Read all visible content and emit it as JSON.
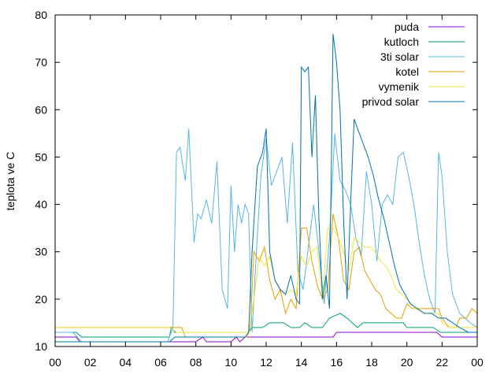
{
  "chart_data": {
    "type": "line",
    "ylabel": "teplota ve C",
    "xlabel": "",
    "title": "",
    "xlim": [
      0,
      24
    ],
    "ylim": [
      10,
      80
    ],
    "x_ticks": [
      "00",
      "02",
      "04",
      "06",
      "08",
      "10",
      "12",
      "14",
      "16",
      "18",
      "20",
      "22",
      "00"
    ],
    "y_ticks": [
      "10",
      "20",
      "30",
      "40",
      "50",
      "60",
      "70",
      "80"
    ],
    "legend_position": "top-right",
    "grid": false,
    "series": [
      {
        "name": "puda",
        "color": "#9400d3",
        "points": [
          [
            0,
            12
          ],
          [
            1.2,
            12
          ],
          [
            1.4,
            11
          ],
          [
            8.0,
            11
          ],
          [
            8.4,
            12
          ],
          [
            8.6,
            11
          ],
          [
            10,
            11
          ],
          [
            10.3,
            12
          ],
          [
            10.5,
            11
          ],
          [
            10.8,
            12
          ],
          [
            15.8,
            12
          ],
          [
            16.0,
            13
          ],
          [
            21.7,
            13
          ],
          [
            22.0,
            12
          ],
          [
            23.5,
            12
          ],
          [
            24,
            12
          ]
        ]
      },
      {
        "name": "kutloch",
        "color": "#009e73",
        "points": [
          [
            0,
            13
          ],
          [
            1.2,
            13
          ],
          [
            1.5,
            12
          ],
          [
            6.5,
            12
          ],
          [
            6.6,
            14
          ],
          [
            6.8,
            13
          ],
          [
            10.8,
            13
          ],
          [
            11.0,
            13
          ],
          [
            11.2,
            14
          ],
          [
            11.8,
            14
          ],
          [
            12.2,
            15
          ],
          [
            13.0,
            15
          ],
          [
            13.4,
            14
          ],
          [
            13.9,
            14
          ],
          [
            14.2,
            15
          ],
          [
            14.6,
            14
          ],
          [
            15.2,
            14
          ],
          [
            15.6,
            16
          ],
          [
            16.2,
            17
          ],
          [
            16.6,
            16
          ],
          [
            16.9,
            15
          ],
          [
            17.2,
            14
          ],
          [
            17.5,
            15
          ],
          [
            19.8,
            15
          ],
          [
            20.0,
            14
          ],
          [
            21.5,
            14
          ],
          [
            21.9,
            13
          ],
          [
            23.6,
            13
          ],
          [
            24,
            13
          ]
        ]
      },
      {
        "name": "3ti solar",
        "color": "#56b4e9",
        "points": [
          [
            0,
            13
          ],
          [
            1.0,
            13
          ],
          [
            1.5,
            11
          ],
          [
            6.4,
            11
          ],
          [
            6.7,
            14
          ],
          [
            6.9,
            51
          ],
          [
            7.1,
            52
          ],
          [
            7.4,
            45
          ],
          [
            7.6,
            56
          ],
          [
            7.9,
            32
          ],
          [
            8.1,
            38
          ],
          [
            8.3,
            37
          ],
          [
            8.6,
            41
          ],
          [
            8.9,
            36
          ],
          [
            9.2,
            49
          ],
          [
            9.5,
            22
          ],
          [
            9.8,
            18
          ],
          [
            10.0,
            44
          ],
          [
            10.2,
            30
          ],
          [
            10.4,
            40
          ],
          [
            10.6,
            36
          ],
          [
            10.8,
            40
          ],
          [
            11.0,
            38
          ],
          [
            11.2,
            13
          ],
          [
            11.4,
            27
          ],
          [
            11.7,
            46
          ],
          [
            12.0,
            54
          ],
          [
            12.3,
            44
          ],
          [
            12.6,
            47
          ],
          [
            12.9,
            50
          ],
          [
            13.2,
            36
          ],
          [
            13.5,
            53
          ],
          [
            13.8,
            26
          ],
          [
            14.1,
            22
          ],
          [
            14.4,
            31
          ],
          [
            14.7,
            40
          ],
          [
            15.0,
            30
          ],
          [
            15.3,
            19
          ],
          [
            15.6,
            33
          ],
          [
            15.9,
            55
          ],
          [
            16.2,
            45
          ],
          [
            16.5,
            43
          ],
          [
            16.8,
            40
          ],
          [
            17.1,
            33
          ],
          [
            17.4,
            29
          ],
          [
            17.7,
            47
          ],
          [
            18.0,
            40
          ],
          [
            18.3,
            28
          ],
          [
            18.6,
            40
          ],
          [
            18.9,
            42
          ],
          [
            19.2,
            40
          ],
          [
            19.5,
            50
          ],
          [
            19.8,
            51
          ],
          [
            20.1,
            46
          ],
          [
            20.4,
            40
          ],
          [
            20.7,
            32
          ],
          [
            21.0,
            25
          ],
          [
            21.3,
            20
          ],
          [
            21.6,
            17
          ],
          [
            21.8,
            51
          ],
          [
            22.0,
            46
          ],
          [
            22.3,
            30
          ],
          [
            22.6,
            21
          ],
          [
            23.0,
            17
          ],
          [
            23.6,
            15
          ],
          [
            24,
            14
          ]
        ]
      },
      {
        "name": "kotel",
        "color": "#e69f00",
        "points": [
          [
            0,
            14
          ],
          [
            6.5,
            14
          ],
          [
            7.2,
            14
          ],
          [
            7.4,
            12
          ],
          [
            10.9,
            12
          ],
          [
            11.1,
            14
          ],
          [
            11.3,
            30
          ],
          [
            11.6,
            28
          ],
          [
            11.9,
            31
          ],
          [
            12.2,
            24
          ],
          [
            12.5,
            20
          ],
          [
            12.8,
            22
          ],
          [
            13.1,
            17
          ],
          [
            13.4,
            20
          ],
          [
            13.7,
            18
          ],
          [
            14.0,
            35
          ],
          [
            14.3,
            35
          ],
          [
            14.6,
            28
          ],
          [
            14.9,
            23
          ],
          [
            15.2,
            20
          ],
          [
            15.5,
            22
          ],
          [
            15.8,
            38
          ],
          [
            16.1,
            33
          ],
          [
            16.4,
            24
          ],
          [
            16.7,
            22
          ],
          [
            17.0,
            30
          ],
          [
            17.3,
            31
          ],
          [
            17.6,
            26
          ],
          [
            17.9,
            24
          ],
          [
            18.2,
            22
          ],
          [
            18.5,
            21
          ],
          [
            18.8,
            18
          ],
          [
            19.1,
            17
          ],
          [
            19.4,
            16
          ],
          [
            19.7,
            16
          ],
          [
            20.0,
            19
          ],
          [
            20.3,
            18
          ],
          [
            21.8,
            18
          ],
          [
            22.0,
            16
          ],
          [
            22.4,
            14
          ],
          [
            22.8,
            14
          ],
          [
            23.0,
            16
          ],
          [
            23.4,
            16
          ],
          [
            23.7,
            18
          ],
          [
            24,
            17
          ]
        ]
      },
      {
        "name": "vymenik",
        "color": "#f0e442",
        "points": [
          [
            0,
            14
          ],
          [
            6.5,
            14
          ],
          [
            6.9,
            13
          ],
          [
            11.0,
            13
          ],
          [
            11.3,
            20
          ],
          [
            11.6,
            29
          ],
          [
            11.9,
            27
          ],
          [
            12.2,
            29
          ],
          [
            12.5,
            24
          ],
          [
            12.8,
            22
          ],
          [
            13.1,
            21
          ],
          [
            13.4,
            22
          ],
          [
            13.7,
            21
          ],
          [
            14.0,
            29
          ],
          [
            14.3,
            27
          ],
          [
            14.6,
            30
          ],
          [
            14.9,
            31
          ],
          [
            15.2,
            20
          ],
          [
            15.5,
            35
          ],
          [
            15.8,
            35
          ],
          [
            16.1,
            33
          ],
          [
            16.4,
            30
          ],
          [
            16.7,
            26
          ],
          [
            17.0,
            33
          ],
          [
            17.3,
            32
          ],
          [
            17.6,
            31
          ],
          [
            17.9,
            31
          ],
          [
            18.2,
            30
          ],
          [
            18.5,
            28
          ],
          [
            18.8,
            27
          ],
          [
            19.1,
            25
          ],
          [
            19.4,
            22
          ],
          [
            19.7,
            21
          ],
          [
            20.0,
            20
          ],
          [
            20.5,
            18
          ],
          [
            21.0,
            17
          ],
          [
            21.8,
            17
          ],
          [
            22.0,
            15
          ],
          [
            22.4,
            14
          ],
          [
            23.0,
            14
          ],
          [
            24,
            14
          ]
        ]
      },
      {
        "name": "privod solar",
        "color": "#0072b2",
        "points": [
          [
            0,
            11
          ],
          [
            6.5,
            11
          ],
          [
            6.8,
            12
          ],
          [
            10.8,
            12
          ],
          [
            11.0,
            13
          ],
          [
            11.2,
            30
          ],
          [
            11.5,
            48
          ],
          [
            11.8,
            51
          ],
          [
            12.0,
            56
          ],
          [
            12.2,
            30
          ],
          [
            12.5,
            24
          ],
          [
            12.8,
            22
          ],
          [
            13.1,
            21
          ],
          [
            13.4,
            25
          ],
          [
            13.7,
            20
          ],
          [
            13.9,
            19
          ],
          [
            14.0,
            69
          ],
          [
            14.2,
            68
          ],
          [
            14.4,
            69
          ],
          [
            14.6,
            50
          ],
          [
            14.8,
            63
          ],
          [
            15.0,
            37
          ],
          [
            15.2,
            20
          ],
          [
            15.4,
            25
          ],
          [
            15.6,
            18
          ],
          [
            15.8,
            76
          ],
          [
            16.0,
            70
          ],
          [
            16.2,
            60
          ],
          [
            16.4,
            37
          ],
          [
            16.6,
            20
          ],
          [
            16.8,
            40
          ],
          [
            17.0,
            58
          ],
          [
            17.2,
            56
          ],
          [
            17.5,
            53
          ],
          [
            17.8,
            50
          ],
          [
            18.1,
            46
          ],
          [
            18.4,
            41
          ],
          [
            18.7,
            37
          ],
          [
            19.0,
            32
          ],
          [
            19.3,
            27
          ],
          [
            19.6,
            23
          ],
          [
            19.9,
            21
          ],
          [
            20.2,
            19
          ],
          [
            20.6,
            18
          ],
          [
            21.0,
            17
          ],
          [
            21.4,
            17
          ],
          [
            21.8,
            16
          ],
          [
            22.2,
            16
          ],
          [
            22.6,
            15
          ],
          [
            23.0,
            14
          ],
          [
            23.5,
            13
          ],
          [
            24,
            13
          ]
        ]
      }
    ]
  }
}
